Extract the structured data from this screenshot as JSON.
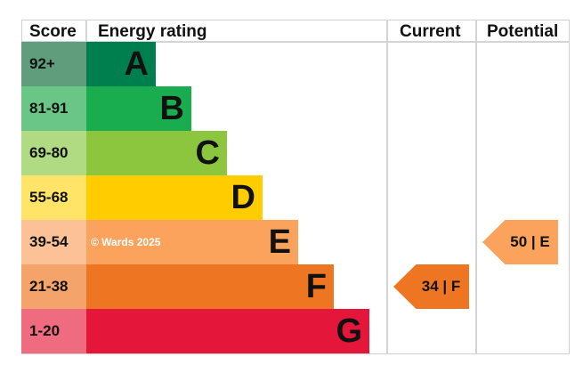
{
  "headers": {
    "score": "Score",
    "rating": "Energy rating",
    "current": "Current",
    "potential": "Potential"
  },
  "watermark": "© Wards 2025",
  "chart_data": {
    "type": "bar",
    "categories": [
      "A",
      "B",
      "C",
      "D",
      "E",
      "F",
      "G"
    ],
    "score_ranges": [
      "92+",
      "81-91",
      "69-80",
      "55-68",
      "39-54",
      "21-38",
      "1-20"
    ],
    "bar_colors": [
      "#007f4e",
      "#1aad4f",
      "#8cc63f",
      "#ffcc00",
      "#fba35d",
      "#ee7623",
      "#e4163a"
    ],
    "score_colors": [
      "#5f9d7d",
      "#6ac686",
      "#b0db82",
      "#ffe468",
      "#fcc196",
      "#f4a46a",
      "#ef6b80"
    ],
    "current": {
      "value": 34,
      "band": "F",
      "label": "34 | F",
      "color": "#ee7623"
    },
    "potential": {
      "value": 50,
      "band": "E",
      "label": "50 | E",
      "color": "#fba35d"
    }
  }
}
